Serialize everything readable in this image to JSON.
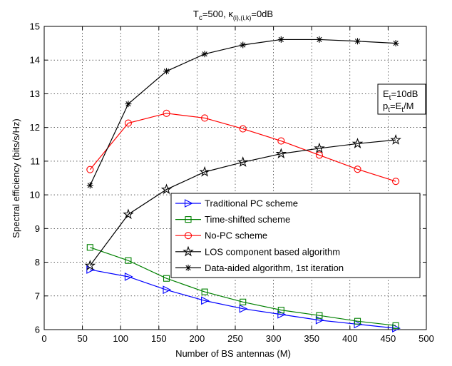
{
  "chart_data": {
    "type": "line",
    "title_main": "T",
    "title_main_sub": "c",
    "title_rest": "=500, κ",
    "title_rest_sub": "(i),(i,k)",
    "title_tail": "=0dB",
    "xlabel": "Number of BS antennas (M)",
    "ylabel": "Spectral efficiency (bits/s/Hz)",
    "xlim": [
      0,
      500
    ],
    "ylim": [
      6,
      15
    ],
    "xticks": [
      "0",
      "50",
      "100",
      "150",
      "200",
      "250",
      "300",
      "350",
      "400",
      "450",
      "500"
    ],
    "yticks": [
      "6",
      "7",
      "8",
      "9",
      "10",
      "11",
      "12",
      "13",
      "14",
      "15"
    ],
    "grid": true,
    "legend_position": "lower-right",
    "annotation": {
      "line1_main": "E",
      "line1_sub": "t",
      "line1_rest": "=10dB",
      "line2_main": "p",
      "line2_sub": "t",
      "line2_mid": "=E",
      "line2_sub2": "t",
      "line2_rest": "/M"
    },
    "x": [
      60,
      110,
      160,
      210,
      260,
      310,
      360,
      410,
      460
    ],
    "series": [
      {
        "name": "Traditional PC scheme",
        "color": "#0000ff",
        "marker": "triangle-right",
        "values": [
          7.78,
          7.57,
          7.18,
          6.86,
          6.62,
          6.45,
          6.28,
          6.16,
          6.04
        ]
      },
      {
        "name": "Time-shifted scheme",
        "color": "#008000",
        "marker": "square",
        "values": [
          8.44,
          8.05,
          7.52,
          7.12,
          6.82,
          6.58,
          6.42,
          6.25,
          6.12
        ]
      },
      {
        "name": "No-PC scheme",
        "color": "#ff0000",
        "marker": "circle",
        "values": [
          10.75,
          12.13,
          12.42,
          12.28,
          11.96,
          11.6,
          11.18,
          10.76,
          10.4
        ]
      },
      {
        "name": "LOS component based algorithm",
        "color": "#000000",
        "marker": "pentagram",
        "values": [
          7.9,
          9.42,
          10.16,
          10.68,
          10.97,
          11.22,
          11.38,
          11.52,
          11.63
        ]
      },
      {
        "name": "Data-aided algorithm, 1st iteration",
        "color": "#000000",
        "marker": "asterisk",
        "values": [
          10.28,
          12.7,
          13.67,
          14.18,
          14.45,
          14.61,
          14.61,
          14.56,
          14.5
        ]
      }
    ]
  }
}
